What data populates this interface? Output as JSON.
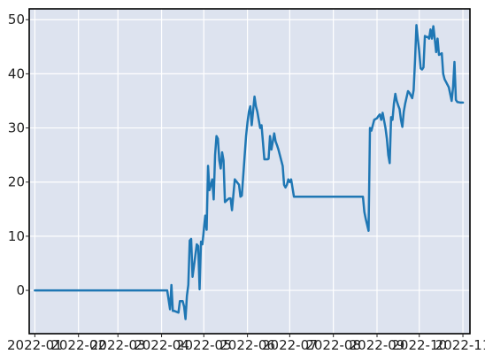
{
  "chart_data": {
    "type": "line",
    "title": "",
    "xlabel": "",
    "ylabel": "",
    "xlim": [
      "2021-12-28",
      "2022-11-06"
    ],
    "ylim": [
      -8,
      52
    ],
    "grid": true,
    "colors": {
      "line": "#1f77b4",
      "plot_bg": "#dde3ef",
      "grid": "#ffffff",
      "frame": "#000000"
    },
    "x_ticks": [
      "2022-01",
      "2022-02",
      "2022-03",
      "2022-04",
      "2022-05",
      "2022-06",
      "2022-07",
      "2022-08",
      "2022-09",
      "2022-10",
      "2022-11"
    ],
    "y_ticks": [
      0,
      10,
      20,
      30,
      40,
      50
    ],
    "series": [
      {
        "x": [
          "2022-01-01",
          "2022-04-05",
          "2022-04-07",
          "2022-04-08",
          "2022-04-09",
          "2022-04-10",
          "2022-04-13",
          "2022-04-14",
          "2022-04-16",
          "2022-04-17",
          "2022-04-18",
          "2022-04-19",
          "2022-04-20",
          "2022-04-21",
          "2022-04-22",
          "2022-04-23",
          "2022-04-26",
          "2022-04-27",
          "2022-04-28",
          "2022-04-29",
          "2022-04-30",
          "2022-05-02",
          "2022-05-03",
          "2022-05-04",
          "2022-05-05",
          "2022-05-06",
          "2022-05-07",
          "2022-05-08",
          "2022-05-09",
          "2022-05-10",
          "2022-05-11",
          "2022-05-12",
          "2022-05-13",
          "2022-05-14",
          "2022-05-15",
          "2022-05-16",
          "2022-05-18",
          "2022-05-19",
          "2022-05-20",
          "2022-05-21",
          "2022-05-23",
          "2022-05-26",
          "2022-05-27",
          "2022-05-28",
          "2022-05-31",
          "2022-06-01",
          "2022-06-02",
          "2022-06-03",
          "2022-06-04",
          "2022-06-06",
          "2022-06-07",
          "2022-06-08",
          "2022-06-09",
          "2022-06-10",
          "2022-06-11",
          "2022-06-13",
          "2022-06-15",
          "2022-06-16",
          "2022-06-17",
          "2022-06-18",
          "2022-06-20",
          "2022-06-21",
          "2022-06-22",
          "2022-06-23",
          "2022-06-24",
          "2022-06-25",
          "2022-06-26",
          "2022-06-27",
          "2022-06-28",
          "2022-06-29",
          "2022-06-30",
          "2022-07-01",
          "2022-07-02",
          "2022-07-04",
          "2022-07-05",
          "2022-07-06",
          "2022-07-07",
          "2022-07-08",
          "2022-07-26",
          "2022-07-27",
          "2022-07-28",
          "2022-07-29",
          "2022-07-30",
          "2022-07-31",
          "2022-08-01",
          "2022-08-02",
          "2022-08-03",
          "2022-08-04",
          "2022-08-05",
          "2022-08-06",
          "2022-08-07",
          "2022-08-08",
          "2022-08-09",
          "2022-08-10",
          "2022-08-11",
          "2022-08-13",
          "2022-08-14",
          "2022-08-15",
          "2022-08-16",
          "2022-08-17",
          "2022-08-18",
          "2022-08-20",
          "2022-08-21",
          "2022-08-22",
          "2022-08-23",
          "2022-08-24",
          "2022-08-26",
          "2022-08-27",
          "2022-08-28",
          "2022-08-30",
          "2022-09-01",
          "2022-09-02",
          "2022-09-03",
          "2022-09-04",
          "2022-09-05",
          "2022-09-07",
          "2022-09-08",
          "2022-09-09",
          "2022-09-10",
          "2022-09-11",
          "2022-09-12",
          "2022-09-13",
          "2022-09-14",
          "2022-09-15",
          "2022-09-16",
          "2022-09-17",
          "2022-09-18",
          "2022-09-19",
          "2022-09-20",
          "2022-09-21",
          "2022-09-23",
          "2022-09-24",
          "2022-09-25",
          "2022-09-26",
          "2022-09-27",
          "2022-09-28",
          "2022-09-29",
          "2022-09-30",
          "2022-10-01",
          "2022-10-02",
          "2022-10-03",
          "2022-10-04",
          "2022-10-05",
          "2022-10-06",
          "2022-10-07",
          "2022-10-08",
          "2022-10-09",
          "2022-10-10",
          "2022-10-11",
          "2022-10-12",
          "2022-10-13",
          "2022-10-14",
          "2022-10-15",
          "2022-10-17",
          "2022-10-18",
          "2022-10-19",
          "2022-10-20",
          "2022-10-22",
          "2022-10-24",
          "2022-10-25",
          "2022-10-26",
          "2022-10-27",
          "2022-10-28",
          "2022-10-30",
          "2022-11-01"
        ],
        "values": [
          0,
          0,
          -3.5,
          1,
          -3.8,
          -3.8,
          -4.1,
          -2,
          -2,
          -3,
          -5.3,
          -1,
          1,
          9.2,
          9.5,
          2.5,
          8.5,
          8.2,
          0.2,
          9,
          8.5,
          13.8,
          11.2,
          23,
          18.5,
          19.5,
          20.5,
          16.8,
          25,
          28.5,
          28,
          24,
          22.5,
          25.5,
          24,
          16.3,
          16.8,
          17,
          17,
          14.8,
          20.5,
          19.5,
          17.3,
          17.5,
          28.5,
          31,
          33,
          34,
          30.5,
          35.8,
          34,
          33,
          31.5,
          30,
          30.5,
          24.2,
          24.2,
          24.3,
          28.5,
          26,
          29,
          27.5,
          26.8,
          26,
          25,
          24,
          23,
          19.5,
          19,
          19.5,
          20.5,
          20,
          20.5,
          17.3,
          17.3,
          17.3,
          17.3,
          17.3,
          17.3,
          17.3,
          17.3,
          17.3,
          17.3,
          17.3,
          17.3,
          17.3,
          17.3,
          17.3,
          17.3,
          17.3,
          17.3,
          17.3,
          17.3,
          17.3,
          17.3,
          17.3,
          17.3,
          17.3,
          17.3,
          17.3,
          17.3,
          17.3,
          17.3,
          17.3,
          14.5,
          13.2,
          11,
          30,
          29.5,
          31.5,
          31.8,
          32.2,
          32.5,
          31.5,
          32.8,
          30,
          28,
          25,
          23.5,
          32,
          31.5,
          34.5,
          36.3,
          35,
          34.2,
          33.5,
          31.5,
          30.2,
          33,
          34.5,
          36.8,
          36.5,
          36,
          35.5,
          37,
          42.5,
          49,
          46.5,
          44,
          41,
          40.8,
          41.2,
          47,
          46.8,
          46.8,
          46.5,
          48.2,
          46.5,
          48.8,
          46.5,
          44,
          46.5,
          43.5,
          43.8,
          40,
          39,
          38.5,
          37.5,
          35,
          37.5,
          42.2,
          35.2,
          34.8,
          34.7,
          34.7
        ]
      }
    ]
  }
}
